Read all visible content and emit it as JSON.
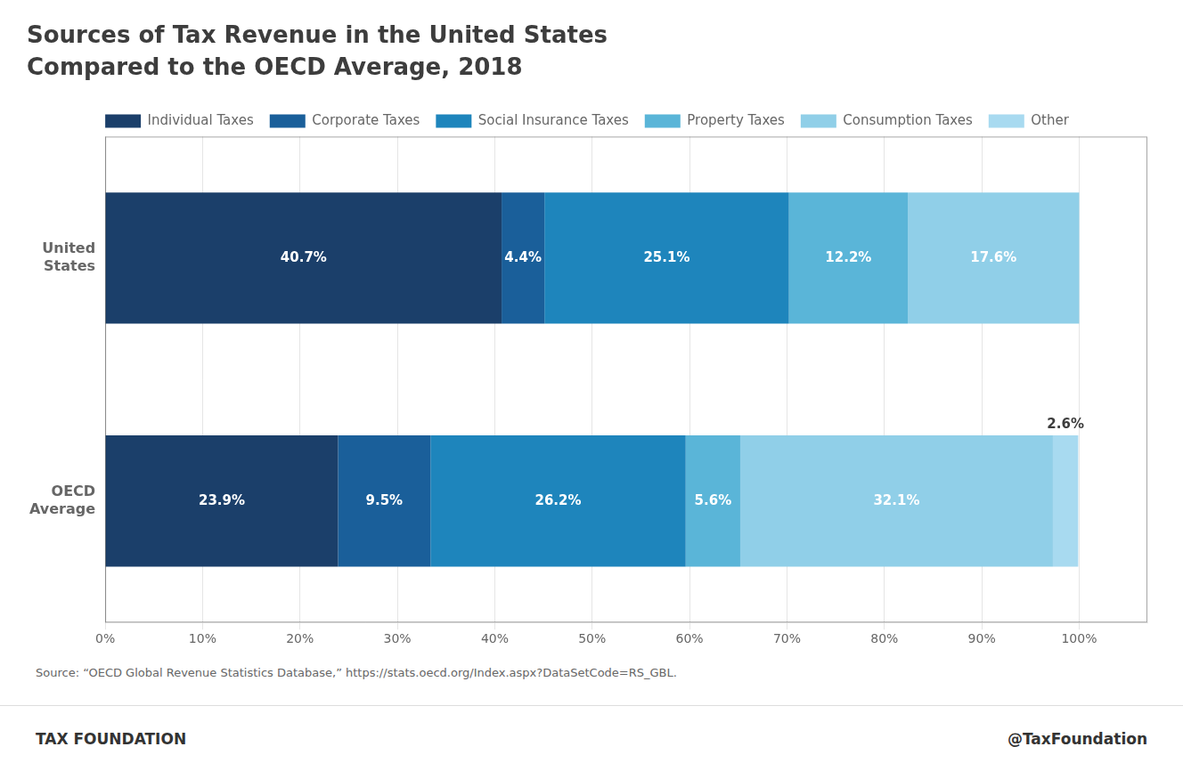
{
  "chart_data": {
    "type": "bar",
    "orientation": "horizontal",
    "stacked": true,
    "data_labels": true,
    "grid": true,
    "legend": "top",
    "title": "Sources of Tax Revenue in the United States",
    "subtitle": "Compared to the OECD Average, 2018",
    "categories": [
      "United States",
      "OECD Average"
    ],
    "series": [
      {
        "name": "Individual Taxes",
        "color": "#1b3f6a",
        "values": [
          40.7,
          23.9
        ],
        "value_labels": [
          "40.7%",
          "23.9%"
        ]
      },
      {
        "name": "Corporate Taxes",
        "color": "#1a5f9a",
        "values": [
          4.4,
          9.5
        ],
        "value_labels": [
          "4.4%",
          "9.5%"
        ]
      },
      {
        "name": "Social Insurance Taxes",
        "color": "#1e85bc",
        "values": [
          25.1,
          26.2
        ],
        "value_labels": [
          "25.1%",
          "26.2%"
        ]
      },
      {
        "name": "Property Taxes",
        "color": "#5ab5d8",
        "values": [
          12.2,
          5.6
        ],
        "value_labels": [
          "12.2%",
          "5.6%"
        ]
      },
      {
        "name": "Consumption Taxes",
        "color": "#90cfe8",
        "values": [
          17.6,
          32.1
        ],
        "value_labels": [
          "17.6%",
          "32.1%"
        ]
      },
      {
        "name": "Other",
        "color": "#a8daf0",
        "values": [
          null,
          2.6
        ],
        "value_labels": [
          null,
          "2.6%"
        ]
      }
    ],
    "xlim": [
      0,
      107
    ],
    "xticks": [
      {
        "value": 0,
        "label": "0%"
      },
      {
        "value": 10,
        "label": "10%"
      },
      {
        "value": 20,
        "label": "20%"
      },
      {
        "value": 30,
        "label": "30%"
      },
      {
        "value": 40,
        "label": "40%"
      },
      {
        "value": 50,
        "label": "50%"
      },
      {
        "value": 60,
        "label": "60%"
      },
      {
        "value": 70,
        "label": "70%"
      },
      {
        "value": 80,
        "label": "80%"
      },
      {
        "value": 90,
        "label": "90%"
      },
      {
        "value": 100,
        "label": "100%"
      }
    ],
    "annotations": [
      "Source: “OECD Global Revenue Statistics Database,” https://stats.oecd.org/Index.aspx?DataSetCode=RS_GBL.",
      "TAX FOUNDATION",
      "@TaxFoundation"
    ]
  }
}
